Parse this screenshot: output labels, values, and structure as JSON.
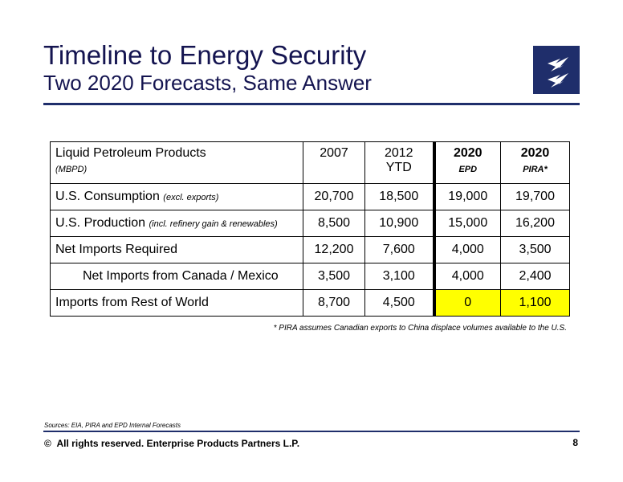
{
  "header": {
    "title": "Timeline to Energy Security",
    "subtitle": "Two 2020 Forecasts, Same Answer",
    "logo_icon": "enterprise-lightning-logo"
  },
  "table": {
    "header": {
      "label": "Liquid Petroleum Products",
      "unit": "(MBPD)",
      "col_2007": "2007",
      "col_2012": "2012",
      "col_2012_sub": "YTD",
      "col_2020a": "2020",
      "col_2020a_sub": "EPD",
      "col_2020b": "2020",
      "col_2020b_sub": "PIRA*"
    },
    "rows": [
      {
        "label": "U.S. Consumption",
        "note": "(excl. exports)",
        "v2007": "20,700",
        "v2012": "18,500",
        "v2020a": "19,000",
        "v2020b": "19,700"
      },
      {
        "label": "U.S. Production",
        "note": "(incl. refinery gain & renewables)",
        "v2007": "8,500",
        "v2012": "10,900",
        "v2020a": "15,000",
        "v2020b": "16,200"
      },
      {
        "label": "Net Imports Required",
        "note": "",
        "v2007": "12,200",
        "v2012": "7,600",
        "v2020a": "4,000",
        "v2020b": "3,500"
      },
      {
        "label": "Net Imports from Canada / Mexico",
        "note": "",
        "v2007": "3,500",
        "v2012": "3,100",
        "v2020a": "4,000",
        "v2020b": "2,400"
      },
      {
        "label": "Imports from Rest of World",
        "note": "",
        "v2007": "8,700",
        "v2012": "4,500",
        "v2020a": "0",
        "v2020b": "1,100"
      }
    ],
    "highlight_color": "#ffff00"
  },
  "footnote": "* PIRA assumes Canadian exports to China displace volumes available to the U.S.",
  "footer": {
    "sources": "Sources:  EIA, PIRA and EPD Internal Forecasts",
    "copyright_symbol": "©",
    "copyright": "All rights reserved. Enterprise Products Partners L.P.",
    "page_number": "8"
  },
  "colors": {
    "brand_navy": "#1f2e6b",
    "title": "#141450"
  }
}
